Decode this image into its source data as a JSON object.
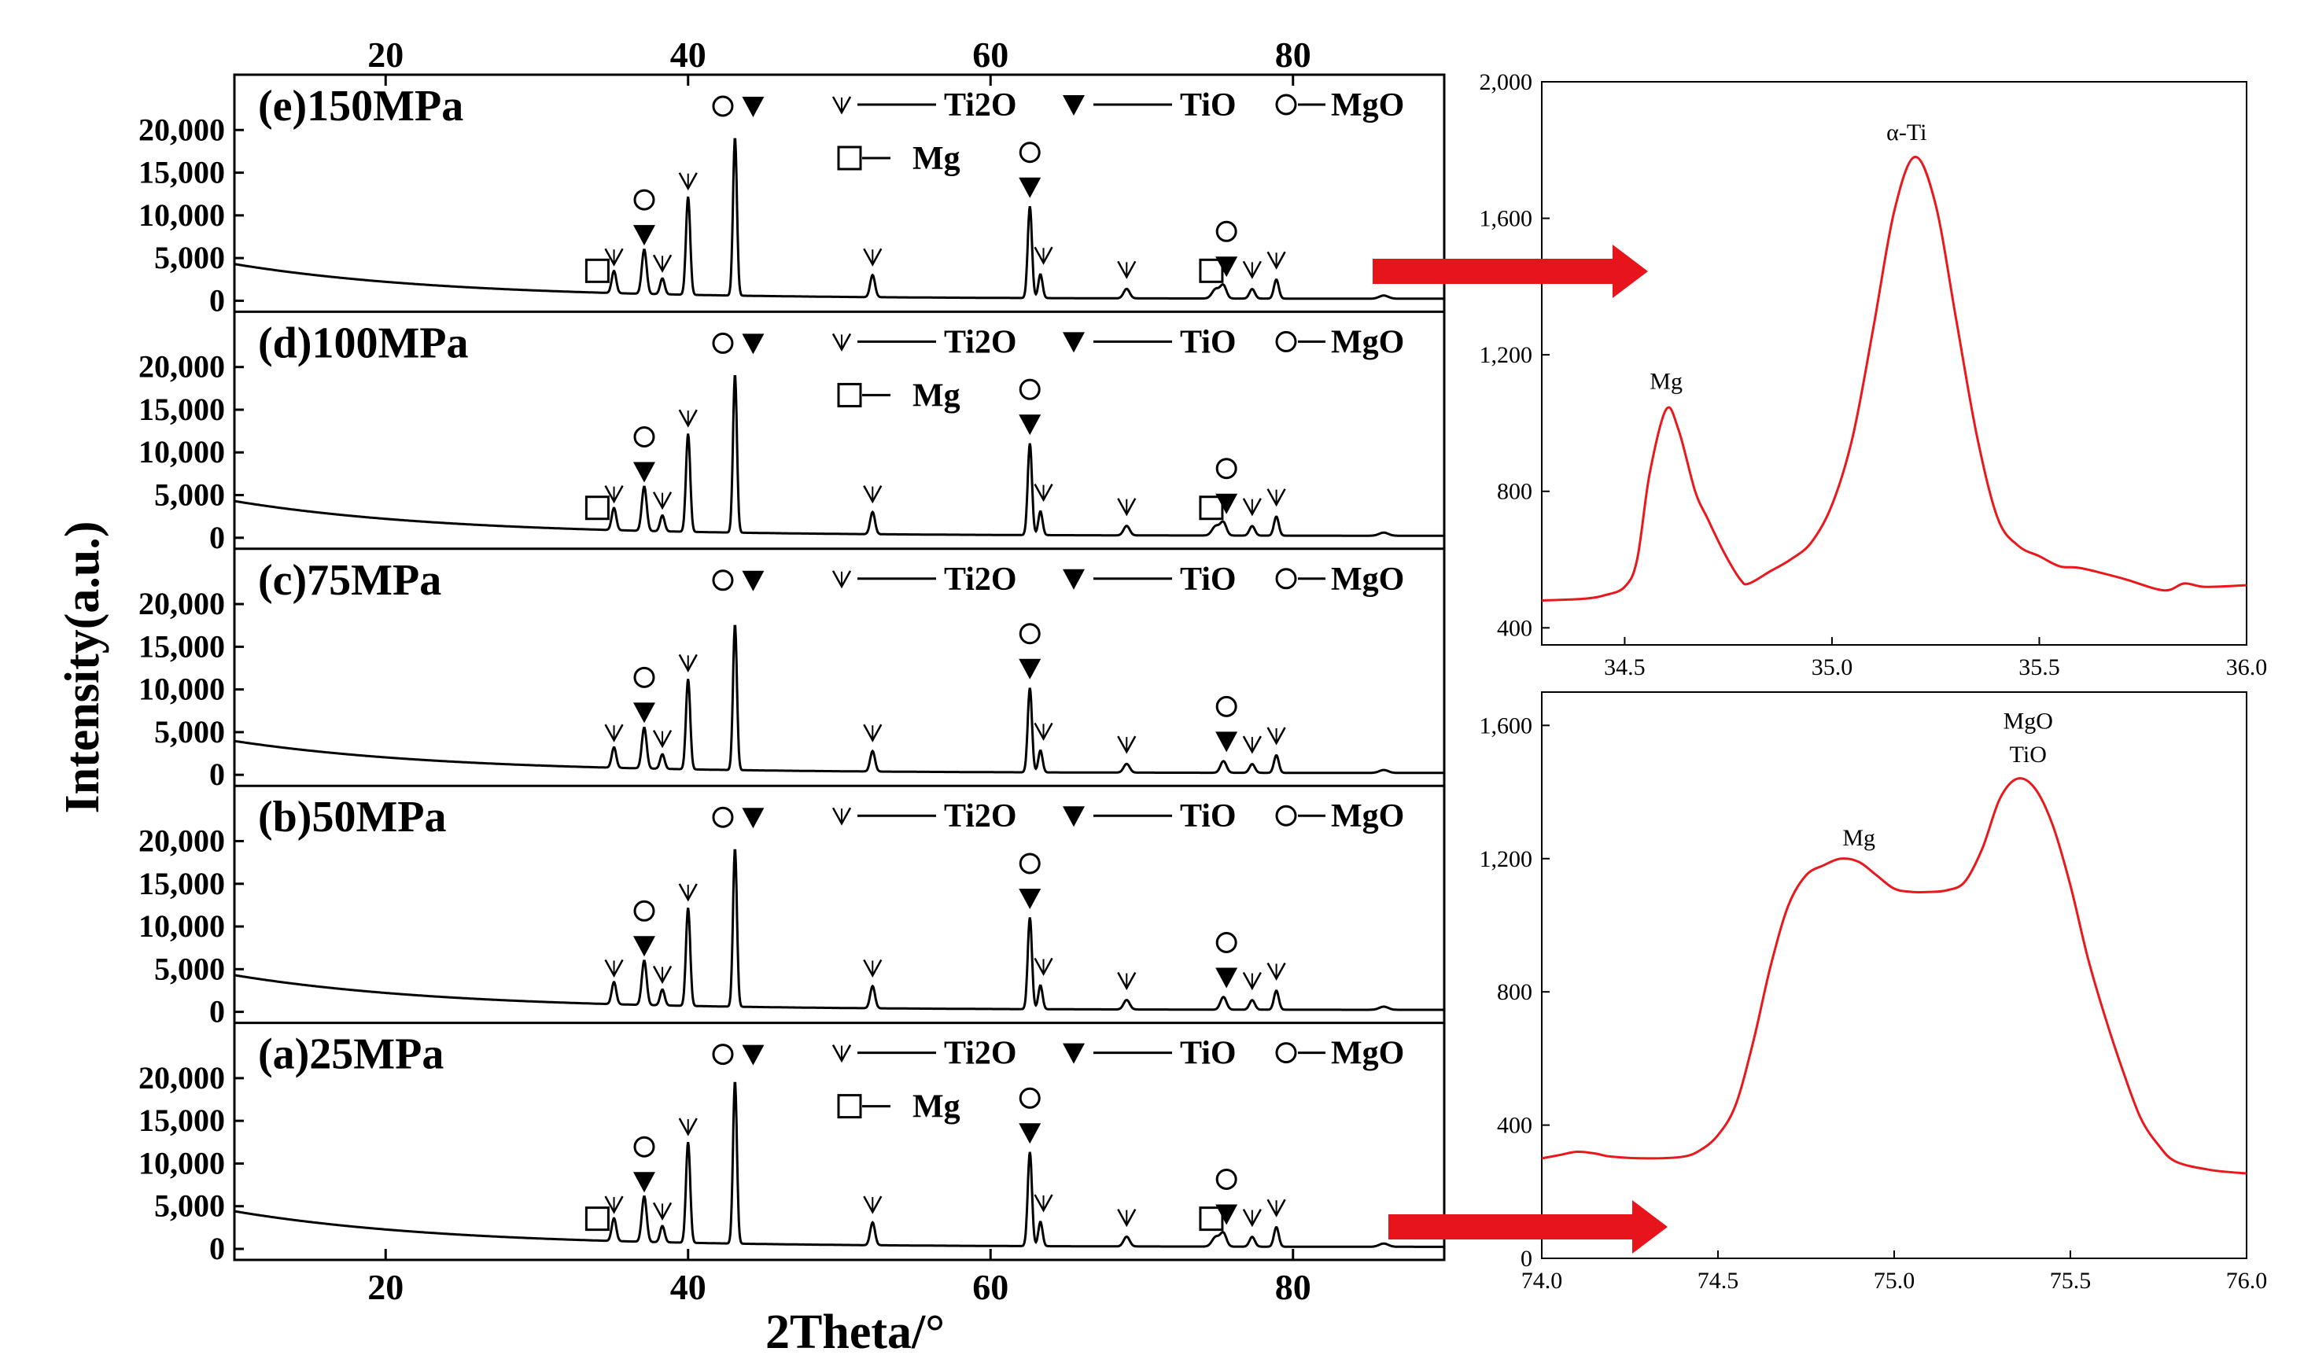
{
  "chart_data": [
    {
      "id": "main",
      "type": "line",
      "x_label": "2Theta/°",
      "y_label": "Intensity(a.u.)",
      "xlim": [
        10,
        90
      ],
      "x_ticks": [
        20,
        40,
        60,
        80
      ],
      "y_ticks": [
        0,
        5000,
        10000,
        15000,
        20000
      ],
      "y_tick_labels": [
        "0",
        "5,000",
        "10,000",
        "15,000",
        "20,000"
      ],
      "legend": {
        "ti2o": "Ti2O",
        "tio": "TiO",
        "mgo": "MgO",
        "mg": "Mg"
      },
      "peaks": [
        {
          "x": 35.1,
          "h": 0.14,
          "w": 0.15,
          "phase": "ti2o"
        },
        {
          "x": 37.1,
          "h": 0.28,
          "w": 0.16,
          "phase": "mgo_tio"
        },
        {
          "x": 38.3,
          "h": 0.1,
          "w": 0.15,
          "phase": "ti2o"
        },
        {
          "x": 40.0,
          "h": 0.62,
          "w": 0.14,
          "phase": "ti2o"
        },
        {
          "x": 43.1,
          "h": 1.0,
          "w": 0.13,
          "phase": "mgo_tio"
        },
        {
          "x": 52.2,
          "h": 0.14,
          "w": 0.16,
          "phase": "ti2o"
        },
        {
          "x": 62.6,
          "h": 0.58,
          "w": 0.14,
          "phase": "mgo_tio"
        },
        {
          "x": 63.3,
          "h": 0.15,
          "w": 0.14,
          "phase": "ti2o"
        },
        {
          "x": 69.0,
          "h": 0.06,
          "w": 0.2,
          "phase": "ti2o"
        },
        {
          "x": 74.9,
          "h": 0.06,
          "w": 0.25,
          "phase": "mg"
        },
        {
          "x": 75.4,
          "h": 0.08,
          "w": 0.2,
          "phase": "mgo_tio"
        },
        {
          "x": 77.3,
          "h": 0.06,
          "w": 0.18,
          "phase": "ti2o"
        },
        {
          "x": 78.9,
          "h": 0.12,
          "w": 0.16,
          "phase": "ti2o"
        },
        {
          "x": 86.0,
          "h": 0.02,
          "w": 0.3,
          "phase": "none"
        }
      ],
      "series": [
        {
          "name": "(e)150MPa",
          "show_mg": true,
          "scale": 19000
        },
        {
          "name": "(d)100MPa",
          "show_mg": true,
          "scale": 19000
        },
        {
          "name": "(c)75MPa",
          "show_mg": false,
          "scale": 17500
        },
        {
          "name": "(b)50MPa",
          "show_mg": false,
          "scale": 19000
        },
        {
          "name": "(a)25MPa",
          "show_mg": true,
          "scale": 19500
        }
      ],
      "markers": [
        {
          "x": 35.1,
          "sym": "ti2o",
          "h": 0.14
        },
        {
          "x": 37.1,
          "sym": "tio",
          "h": 0.28
        },
        {
          "x": 37.1,
          "sym": "mgo",
          "h": 0.28,
          "stack": 1
        },
        {
          "x": 38.3,
          "sym": "ti2o",
          "h": 0.1
        },
        {
          "x": 40.0,
          "sym": "ti2o",
          "h": 0.62
        },
        {
          "x": 42.3,
          "sym": "mgo",
          "h": 1.0,
          "top": true
        },
        {
          "x": 44.3,
          "sym": "tio",
          "h": 1.0,
          "top": true
        },
        {
          "x": 52.2,
          "sym": "ti2o",
          "h": 0.14
        },
        {
          "x": 62.6,
          "sym": "tio",
          "h": 0.58
        },
        {
          "x": 62.6,
          "sym": "mgo",
          "h": 0.58,
          "stack": 1
        },
        {
          "x": 63.5,
          "sym": "ti2o",
          "h": 0.15
        },
        {
          "x": 69.0,
          "sym": "ti2o",
          "h": 0.06
        },
        {
          "x": 75.6,
          "sym": "tio",
          "h": 0.08
        },
        {
          "x": 75.6,
          "sym": "mgo",
          "h": 0.08,
          "stack": 1
        },
        {
          "x": 77.3,
          "sym": "ti2o",
          "h": 0.06
        },
        {
          "x": 78.9,
          "sym": "ti2o",
          "h": 0.12
        }
      ],
      "mg_markers": [
        {
          "x": 34.0,
          "h": 0.06
        },
        {
          "x": 74.6,
          "h": 0.06
        }
      ]
    },
    {
      "id": "inset-top",
      "type": "line",
      "xlim": [
        34.3,
        36.0
      ],
      "ylim": [
        350,
        2000
      ],
      "x_ticks": [
        34.5,
        35.0,
        35.5,
        36.0
      ],
      "x_tick_labels": [
        "34.5",
        "35.0",
        "35.5",
        "36.0"
      ],
      "y_ticks": [
        400,
        800,
        1200,
        1600,
        2000
      ],
      "y_tick_labels": [
        "400",
        "800",
        "1,200",
        "1,600",
        "2,000"
      ],
      "annotations": [
        {
          "text": "Mg",
          "x": 34.6,
          "y": 1100
        },
        {
          "text": "α-Ti",
          "x": 35.18,
          "y": 1830
        }
      ],
      "points": [
        [
          34.3,
          480
        ],
        [
          34.4,
          485
        ],
        [
          34.45,
          495
        ],
        [
          34.5,
          520
        ],
        [
          34.53,
          600
        ],
        [
          34.56,
          850
        ],
        [
          34.6,
          1040
        ],
        [
          34.63,
          980
        ],
        [
          34.67,
          800
        ],
        [
          34.7,
          720
        ],
        [
          34.74,
          620
        ],
        [
          34.78,
          540
        ],
        [
          34.8,
          530
        ],
        [
          34.85,
          565
        ],
        [
          34.9,
          600
        ],
        [
          34.95,
          650
        ],
        [
          35.0,
          760
        ],
        [
          35.05,
          960
        ],
        [
          35.1,
          1280
        ],
        [
          35.15,
          1620
        ],
        [
          35.2,
          1780
        ],
        [
          35.25,
          1640
        ],
        [
          35.3,
          1300
        ],
        [
          35.35,
          960
        ],
        [
          35.4,
          720
        ],
        [
          35.45,
          640
        ],
        [
          35.5,
          610
        ],
        [
          35.55,
          580
        ],
        [
          35.6,
          575
        ],
        [
          35.7,
          545
        ],
        [
          35.8,
          510
        ],
        [
          35.85,
          530
        ],
        [
          35.9,
          520
        ],
        [
          36.0,
          525
        ]
      ]
    },
    {
      "id": "inset-bottom",
      "type": "line",
      "xlim": [
        74.0,
        76.0
      ],
      "ylim": [
        0,
        1700
      ],
      "x_ticks": [
        74.0,
        74.5,
        75.0,
        75.5,
        76.0
      ],
      "x_tick_labels": [
        "74.0",
        "74.5",
        "75.0",
        "75.5",
        "76.0"
      ],
      "y_ticks": [
        0,
        400,
        800,
        1200,
        1600
      ],
      "y_tick_labels": [
        "0",
        "400",
        "800",
        "1,200",
        "1,600"
      ],
      "annotations": [
        {
          "text": "Mg",
          "x": 74.9,
          "y": 1240
        },
        {
          "text": "MgO",
          "x": 75.38,
          "y": 1590
        },
        {
          "text": "TiO",
          "x": 75.38,
          "y": 1490
        }
      ],
      "points": [
        [
          74.0,
          300
        ],
        [
          74.05,
          310
        ],
        [
          74.1,
          320
        ],
        [
          74.15,
          315
        ],
        [
          74.2,
          305
        ],
        [
          74.3,
          300
        ],
        [
          74.4,
          305
        ],
        [
          74.45,
          325
        ],
        [
          74.5,
          370
        ],
        [
          74.55,
          460
        ],
        [
          74.6,
          650
        ],
        [
          74.65,
          880
        ],
        [
          74.7,
          1060
        ],
        [
          74.75,
          1150
        ],
        [
          74.8,
          1180
        ],
        [
          74.85,
          1200
        ],
        [
          74.9,
          1190
        ],
        [
          74.95,
          1150
        ],
        [
          75.0,
          1110
        ],
        [
          75.05,
          1100
        ],
        [
          75.1,
          1100
        ],
        [
          75.15,
          1105
        ],
        [
          75.2,
          1130
        ],
        [
          75.25,
          1230
        ],
        [
          75.3,
          1380
        ],
        [
          75.35,
          1440
        ],
        [
          75.4,
          1410
        ],
        [
          75.45,
          1300
        ],
        [
          75.5,
          1120
        ],
        [
          75.55,
          900
        ],
        [
          75.6,
          720
        ],
        [
          75.65,
          560
        ],
        [
          75.7,
          420
        ],
        [
          75.75,
          340
        ],
        [
          75.8,
          290
        ],
        [
          75.9,
          265
        ],
        [
          76.0,
          255
        ]
      ]
    }
  ]
}
